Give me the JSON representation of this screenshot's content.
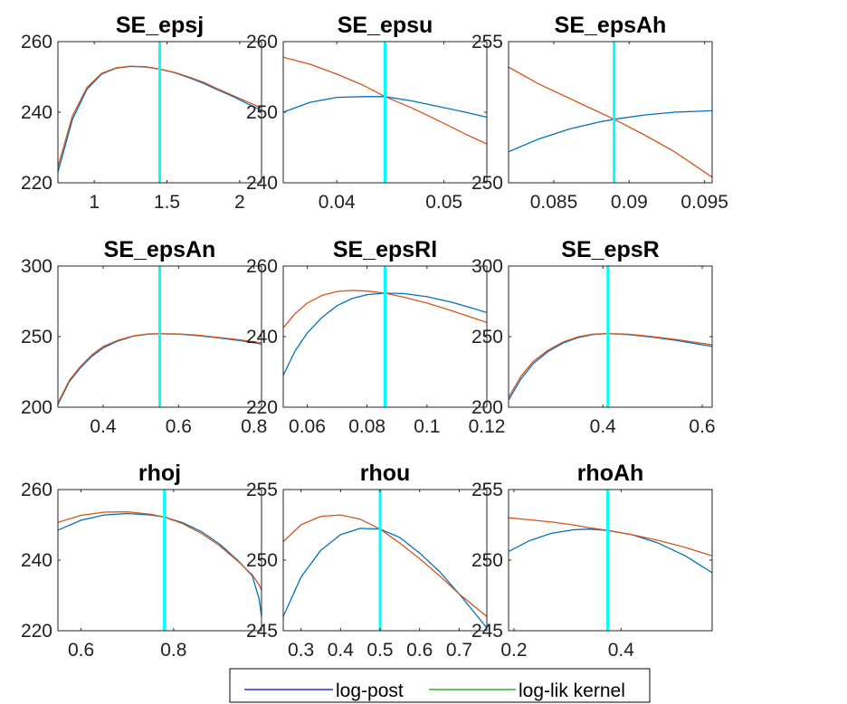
{
  "colors": {
    "log_post": "#0072BD",
    "log_lik_kernel": "#D95319",
    "mode_line": "#00FFFF",
    "legend_log_post": "#0000FF",
    "legend_log_lik_kernel": "#00AA00"
  },
  "legend": {
    "entries": [
      "log-post",
      "log-lik kernel"
    ]
  },
  "chart_data": [
    {
      "type": "line",
      "title": "SE_epsj",
      "xlim": [
        0.75,
        2.15
      ],
      "ylim": [
        220,
        260
      ],
      "xticks": [
        1,
        1.5,
        2
      ],
      "xtick_labels": [
        "1",
        "1.5",
        "2"
      ],
      "yticks": [
        220,
        240,
        260
      ],
      "ytick_labels": [
        "220",
        "240",
        "260"
      ],
      "mode": 1.45,
      "x": [
        0.75,
        0.85,
        0.95,
        1.05,
        1.15,
        1.25,
        1.35,
        1.45,
        1.55,
        1.65,
        1.75,
        1.85,
        1.95,
        2.05,
        2.15
      ],
      "series": [
        {
          "values": [
            223,
            238,
            246.5,
            250.8,
            252.5,
            253,
            252.8,
            252.2,
            251.2,
            249.8,
            248.2,
            246.3,
            244.5,
            242.5,
            240.5
          ]
        },
        {
          "values": [
            224.5,
            239,
            247,
            251,
            252.6,
            253,
            252.9,
            252.2,
            251.3,
            250,
            248.5,
            246.6,
            244.8,
            243,
            241.2
          ]
        }
      ]
    },
    {
      "type": "line",
      "title": "SE_epsu",
      "xlim": [
        0.035,
        0.054
      ],
      "ylim": [
        240,
        260
      ],
      "xticks": [
        0.04,
        0.05
      ],
      "xtick_labels": [
        "0.04",
        "0.05"
      ],
      "yticks": [
        240,
        250,
        260
      ],
      "ytick_labels": [
        "240",
        "250",
        "260"
      ],
      "mode": 0.0445,
      "x": [
        0.035,
        0.0375,
        0.04,
        0.0425,
        0.0445,
        0.047,
        0.0495,
        0.052,
        0.054
      ],
      "series": [
        {
          "values": [
            250,
            251.4,
            252.1,
            252.2,
            252.2,
            251.6,
            250.8,
            250,
            249.3
          ]
        },
        {
          "values": [
            257.8,
            256.8,
            255.4,
            253.8,
            252.2,
            250.6,
            248.8,
            246.9,
            245.5
          ]
        }
      ]
    },
    {
      "type": "line",
      "title": "SE_epsAh",
      "xlim": [
        0.082,
        0.0955
      ],
      "ylim": [
        250,
        255
      ],
      "xticks": [
        0.085,
        0.09,
        0.095
      ],
      "xtick_labels": [
        "0.085",
        "0.09",
        "0.095"
      ],
      "yticks": [
        250,
        255
      ],
      "ytick_labels": [
        "250",
        "255"
      ],
      "mode": 0.089,
      "x": [
        0.082,
        0.084,
        0.086,
        0.088,
        0.089,
        0.091,
        0.093,
        0.0955
      ],
      "series": [
        {
          "values": [
            251.1,
            251.55,
            251.9,
            252.15,
            252.25,
            252.4,
            252.5,
            252.55
          ]
        },
        {
          "values": [
            254.1,
            253.5,
            253,
            252.5,
            252.25,
            251.7,
            251.1,
            250.2
          ]
        }
      ]
    },
    {
      "type": "line",
      "title": "SE_epsAn",
      "xlim": [
        0.28,
        0.82
      ],
      "ylim": [
        200,
        300
      ],
      "xticks": [
        0.4,
        0.6,
        0.8
      ],
      "xtick_labels": [
        "0.4",
        "0.6",
        "0.8"
      ],
      "yticks": [
        200,
        250,
        300
      ],
      "ytick_labels": [
        "200",
        "250",
        "300"
      ],
      "mode": 0.55,
      "x": [
        0.28,
        0.31,
        0.34,
        0.37,
        0.4,
        0.44,
        0.48,
        0.52,
        0.55,
        0.6,
        0.65,
        0.7,
        0.76,
        0.82
      ],
      "series": [
        {
          "values": [
            202,
            218,
            228,
            236,
            242,
            247,
            250.3,
            251.8,
            252,
            251.8,
            250.8,
            249.3,
            247.3,
            244.8
          ]
        },
        {
          "values": [
            203,
            219,
            229,
            237,
            243,
            247.5,
            250.5,
            251.9,
            252,
            251.9,
            251,
            249.6,
            247.8,
            245.6
          ]
        }
      ]
    },
    {
      "type": "line",
      "title": "SE_epsRl",
      "xlim": [
        0.052,
        0.12
      ],
      "ylim": [
        220,
        260
      ],
      "xticks": [
        0.06,
        0.08,
        0.1,
        0.12
      ],
      "xtick_labels": [
        "0.06",
        "0.08",
        "0.1",
        "0.12"
      ],
      "yticks": [
        220,
        240,
        260
      ],
      "ytick_labels": [
        "220",
        "240",
        "260"
      ],
      "mode": 0.086,
      "x": [
        0.052,
        0.056,
        0.06,
        0.065,
        0.07,
        0.075,
        0.08,
        0.086,
        0.092,
        0.1,
        0.108,
        0.115,
        0.12
      ],
      "series": [
        {
          "values": [
            229,
            236,
            241,
            245.5,
            248.8,
            250.8,
            251.9,
            252.3,
            252.2,
            251.3,
            249.8,
            248.1,
            246.8
          ]
        },
        {
          "values": [
            242.5,
            246.5,
            249.5,
            251.7,
            252.8,
            253.1,
            252.9,
            252.3,
            251.2,
            249.5,
            247.4,
            245.4,
            244
          ]
        }
      ]
    },
    {
      "type": "line",
      "title": "SE_epsR",
      "xlim": [
        0.21,
        0.62
      ],
      "ylim": [
        200,
        300
      ],
      "xticks": [
        0.4,
        0.6
      ],
      "xtick_labels": [
        "0.4",
        "0.6"
      ],
      "yticks": [
        200,
        250,
        300
      ],
      "ytick_labels": [
        "200",
        "250",
        "300"
      ],
      "mode": 0.41,
      "x": [
        0.21,
        0.235,
        0.26,
        0.29,
        0.32,
        0.35,
        0.38,
        0.41,
        0.45,
        0.5,
        0.55,
        0.62
      ],
      "series": [
        {
          "values": [
            205,
            220,
            231,
            239.5,
            245.5,
            249.3,
            251.5,
            252.2,
            251.5,
            249.6,
            247.2,
            243
          ]
        },
        {
          "values": [
            207,
            222,
            232.5,
            240.5,
            246.2,
            249.8,
            251.7,
            252.2,
            251.7,
            250,
            247.8,
            244.2
          ]
        }
      ]
    },
    {
      "type": "line",
      "title": "rhoj",
      "xlim": [
        0.55,
        0.99
      ],
      "ylim": [
        220,
        260
      ],
      "xticks": [
        0.6,
        0.8
      ],
      "xtick_labels": [
        "0.6",
        "0.8"
      ],
      "yticks": [
        220,
        240,
        260
      ],
      "ytick_labels": [
        "220",
        "240",
        "260"
      ],
      "mode": 0.78,
      "x": [
        0.55,
        0.6,
        0.65,
        0.7,
        0.75,
        0.78,
        0.82,
        0.86,
        0.9,
        0.94,
        0.97,
        0.985,
        0.99
      ],
      "series": [
        {
          "values": [
            248.5,
            251.3,
            252.8,
            253.2,
            252.8,
            252.2,
            250.6,
            248.1,
            244.5,
            239.8,
            235.5,
            229,
            224
          ]
        },
        {
          "values": [
            250.7,
            252.7,
            253.6,
            253.7,
            253,
            252.2,
            250.3,
            247.6,
            244,
            239.6,
            235.8,
            233,
            231.5
          ]
        }
      ]
    },
    {
      "type": "line",
      "title": "rhou",
      "xlim": [
        0.255,
        0.77
      ],
      "ylim": [
        245,
        255
      ],
      "xticks": [
        0.3,
        0.4,
        0.5,
        0.6,
        0.7
      ],
      "xtick_labels": [
        "0.3",
        "0.4",
        "0.5",
        "0.6",
        "0.7"
      ],
      "yticks": [
        245,
        250,
        255
      ],
      "ytick_labels": [
        "245",
        "250",
        "255"
      ],
      "mode": 0.5,
      "x": [
        0.255,
        0.3,
        0.35,
        0.4,
        0.45,
        0.5,
        0.55,
        0.6,
        0.65,
        0.7,
        0.77
      ],
      "series": [
        {
          "values": [
            246,
            248.8,
            250.7,
            251.8,
            252.25,
            252.2,
            251.6,
            250.5,
            249.2,
            247.6,
            245.2
          ]
        },
        {
          "values": [
            251.3,
            252.5,
            253.1,
            253.2,
            252.9,
            252.2,
            251.2,
            250.1,
            248.9,
            247.6,
            246
          ]
        }
      ]
    },
    {
      "type": "line",
      "title": "rhoAh",
      "xlim": [
        0.19,
        0.57
      ],
      "ylim": [
        245,
        255
      ],
      "xticks": [
        0.2,
        0.4
      ],
      "xtick_labels": [
        "0.2",
        "0.4"
      ],
      "yticks": [
        245,
        250,
        255
      ],
      "ytick_labels": [
        "245",
        "250",
        "255"
      ],
      "mode": 0.375,
      "x": [
        0.19,
        0.23,
        0.27,
        0.31,
        0.34,
        0.375,
        0.42,
        0.47,
        0.52,
        0.57
      ],
      "series": [
        {
          "values": [
            250.6,
            251.4,
            251.9,
            252.15,
            252.2,
            252.1,
            251.8,
            251.2,
            250.3,
            249.1
          ]
        },
        {
          "values": [
            253,
            252.85,
            252.7,
            252.5,
            252.3,
            252.1,
            251.8,
            251.4,
            250.9,
            250.3
          ]
        }
      ]
    }
  ]
}
